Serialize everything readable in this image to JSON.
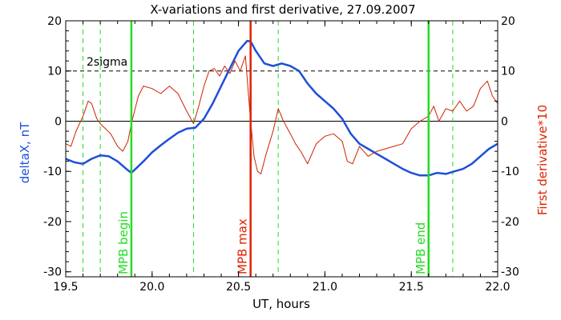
{
  "chart_data": {
    "type": "line",
    "title": "X-variations and first derivative, 27.09.2007",
    "xlabel": "UT, hours",
    "ylabel_left": "deltaX, nT",
    "ylabel_right": "First derivative*10",
    "xlim": [
      19.5,
      22.0
    ],
    "ylim": [
      -31,
      20
    ],
    "x_ticks": [
      "19.5",
      "20.0",
      "20.5",
      "21.0",
      "21.5",
      "22.0"
    ],
    "y_ticks": [
      "20",
      "10",
      "0",
      "-10",
      "-20",
      "-30"
    ],
    "colors": {
      "deltaX": "#1f4fd8",
      "derivative": "#cc2200",
      "mpb": "#22dd22",
      "mpb_max": "#dd2200"
    },
    "threshold": {
      "label": "2sigma",
      "value": 10
    },
    "markers": [
      {
        "label": "MPB begin",
        "x": 19.88,
        "color": "#22dd22"
      },
      {
        "label": "MPB max",
        "x": 20.57,
        "color": "#dd2200"
      },
      {
        "label": "MPB end",
        "x": 21.6,
        "color": "#22dd22"
      }
    ],
    "dashed_lines_x": [
      19.6,
      19.7,
      20.24,
      20.73,
      21.74
    ],
    "series": [
      {
        "name": "deltaX",
        "x": [
          19.5,
          19.55,
          19.6,
          19.65,
          19.7,
          19.75,
          19.8,
          19.85,
          19.88,
          19.95,
          20.0,
          20.05,
          20.1,
          20.15,
          20.2,
          20.25,
          20.3,
          20.35,
          20.4,
          20.45,
          20.5,
          20.55,
          20.57,
          20.6,
          20.65,
          20.7,
          20.75,
          20.8,
          20.85,
          20.9,
          20.95,
          21.0,
          21.05,
          21.1,
          21.15,
          21.2,
          21.25,
          21.3,
          21.35,
          21.4,
          21.45,
          21.5,
          21.55,
          21.6,
          21.65,
          21.7,
          21.75,
          21.8,
          21.85,
          21.9,
          21.95,
          22.0
        ],
        "y": [
          -7.5,
          -8.2,
          -8.5,
          -7.5,
          -6.8,
          -7.0,
          -8.0,
          -9.5,
          -10.3,
          -8.0,
          -6.2,
          -4.8,
          -3.5,
          -2.3,
          -1.5,
          -1.3,
          0.5,
          3.5,
          7.0,
          10.5,
          14.0,
          16.0,
          15.9,
          14.0,
          11.5,
          11.0,
          11.5,
          11.0,
          10.0,
          7.5,
          5.5,
          4.0,
          2.5,
          0.5,
          -2.5,
          -4.5,
          -5.5,
          -6.5,
          -7.5,
          -8.5,
          -9.5,
          -10.3,
          -10.8,
          -10.8,
          -10.3,
          -10.5,
          -10.0,
          -9.5,
          -8.5,
          -7.0,
          -5.5,
          -4.5
        ]
      },
      {
        "name": "derivative",
        "x": [
          19.5,
          19.53,
          19.56,
          19.6,
          19.63,
          19.65,
          19.68,
          19.7,
          19.73,
          19.76,
          19.8,
          19.83,
          19.86,
          19.88,
          19.92,
          19.95,
          20.0,
          20.05,
          20.1,
          20.15,
          20.2,
          20.24,
          20.27,
          20.3,
          20.33,
          20.36,
          20.39,
          20.42,
          20.45,
          20.48,
          20.51,
          20.54,
          20.57,
          20.59,
          20.61,
          20.63,
          20.66,
          20.7,
          20.73,
          20.76,
          20.8,
          20.83,
          20.86,
          20.9,
          20.95,
          21.0,
          21.05,
          21.1,
          21.13,
          21.16,
          21.2,
          21.25,
          21.3,
          21.35,
          21.4,
          21.45,
          21.5,
          21.55,
          21.6,
          21.63,
          21.66,
          21.7,
          21.74,
          21.78,
          21.82,
          21.86,
          21.9,
          21.94,
          21.97,
          22.0
        ],
        "y": [
          -4.5,
          -5.0,
          -2.0,
          1.0,
          4.0,
          3.5,
          0.5,
          -0.5,
          -1.5,
          -2.5,
          -5.0,
          -6.0,
          -4.0,
          -0.5,
          5.0,
          7.0,
          6.5,
          5.5,
          7.0,
          5.5,
          2.0,
          -0.5,
          3.0,
          7.0,
          10.0,
          10.5,
          9.0,
          11.0,
          9.5,
          12.0,
          10.0,
          13.0,
          0.0,
          -7.0,
          -10.0,
          -10.5,
          -6.5,
          -2.0,
          2.5,
          0.0,
          -2.5,
          -4.5,
          -6.0,
          -8.5,
          -4.5,
          -3.0,
          -2.5,
          -4.0,
          -8.0,
          -8.5,
          -5.0,
          -7.0,
          -6.0,
          -5.5,
          -5.0,
          -4.5,
          -1.5,
          0.0,
          1.0,
          3.0,
          0.0,
          2.5,
          2.0,
          4.0,
          2.0,
          3.0,
          6.5,
          8.0,
          5.0,
          3.5
        ]
      }
    ]
  }
}
